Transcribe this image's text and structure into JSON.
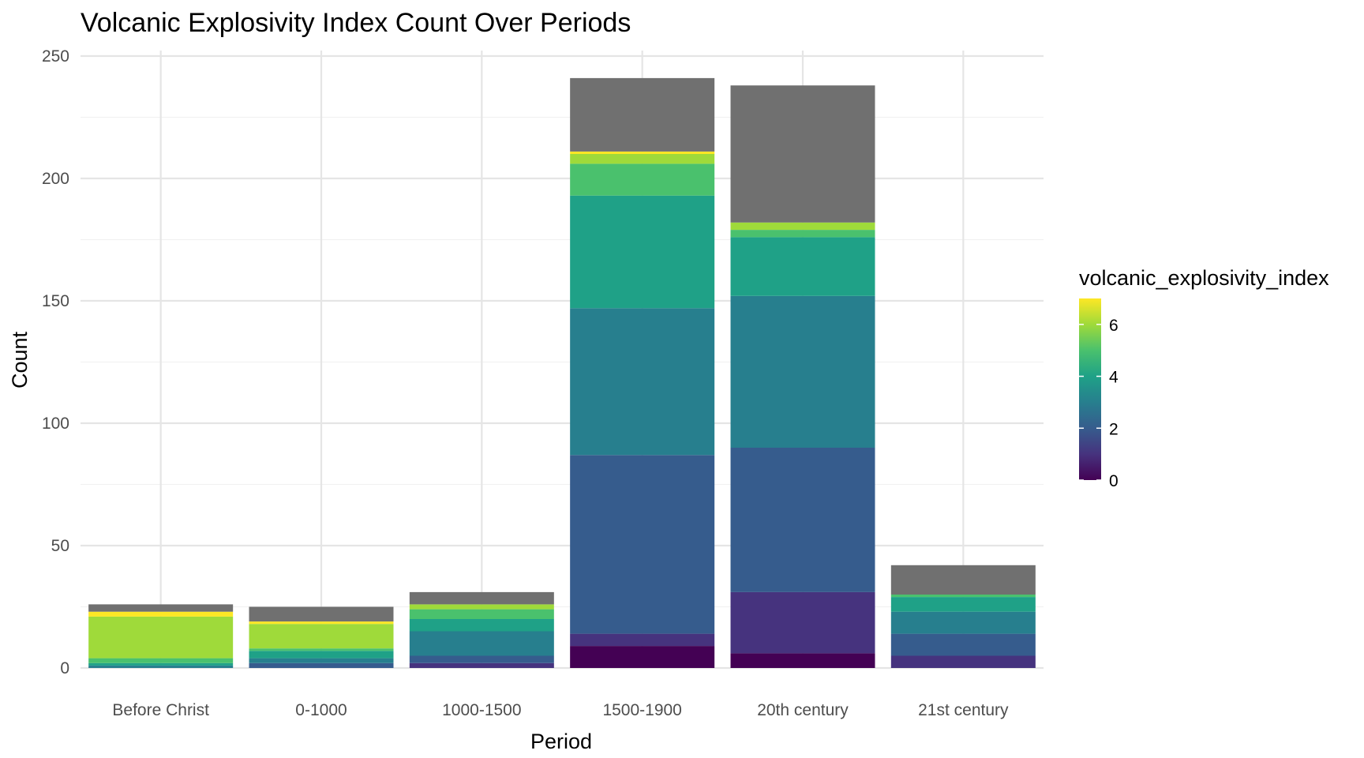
{
  "chart_data": {
    "type": "bar",
    "stacked": true,
    "title": "Volcanic Explosivity Index Count Over Periods",
    "xlabel": "Period",
    "ylabel": "Count",
    "ylim": [
      0,
      250
    ],
    "yticks": [
      0,
      50,
      100,
      150,
      200,
      250
    ],
    "grid": true,
    "categories": [
      "Before Christ",
      "0-1000",
      "1000-1500",
      "1500-1900",
      "20th century",
      "21st century"
    ],
    "series": [
      {
        "vei": 0,
        "color": "#440154",
        "values": [
          0,
          0,
          0,
          9,
          6,
          0
        ]
      },
      {
        "vei": 1,
        "color": "#46337E",
        "values": [
          0,
          0,
          2,
          5,
          25,
          5
        ]
      },
      {
        "vei": 2,
        "color": "#365C8D",
        "values": [
          0,
          2,
          3,
          73,
          59,
          9
        ]
      },
      {
        "vei": 3,
        "color": "#277F8E",
        "values": [
          1,
          2,
          10,
          60,
          62,
          9
        ]
      },
      {
        "vei": 4,
        "color": "#1FA187",
        "values": [
          1,
          3,
          5,
          46,
          24,
          6
        ]
      },
      {
        "vei": 5,
        "color": "#4AC16D",
        "values": [
          2,
          1,
          4,
          13,
          3,
          1
        ]
      },
      {
        "vei": 6,
        "color": "#9FDA3A",
        "values": [
          17,
          10,
          2,
          4,
          3,
          0
        ]
      },
      {
        "vei": 7,
        "color": "#FDE725",
        "values": [
          2,
          1,
          0,
          1,
          0,
          0
        ]
      },
      {
        "vei": "NA",
        "color": "#707070",
        "values": [
          3,
          6,
          5,
          30,
          56,
          12
        ]
      }
    ],
    "legend": {
      "title": "volcanic_explosivity_index",
      "placement": "right",
      "type": "colorbar",
      "range": [
        0,
        7
      ],
      "ticks": [
        0,
        2,
        4,
        6
      ],
      "tick_labels": [
        "0",
        "2",
        "4",
        "6"
      ]
    }
  }
}
